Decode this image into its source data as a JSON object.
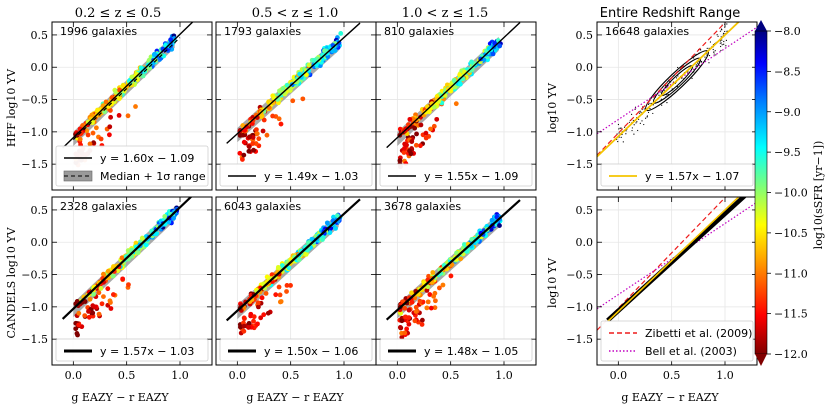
{
  "chart_data": {
    "type": "scatter",
    "xlabel": "g EAZY − r EAZY",
    "xlim": [
      -0.2,
      1.3
    ],
    "ylim": [
      -1.9,
      0.7
    ],
    "xticks": [
      "0.0",
      "0.5",
      "1.0"
    ],
    "yticks": [
      "0.5",
      "0.0",
      "−0.5",
      "−1.0",
      "−1.5"
    ],
    "column_titles": [
      "0.2 ≤ z ≤ 0.5",
      "0.5 < z ≤ 1.0",
      "1.0 < z ≤ 1.5",
      "Entire Redshift Range"
    ],
    "row_ylabels": [
      "HFF log10 ΥV",
      "CANDELS log10 ΥV",
      "log10 ΥV",
      "log10 ΥV"
    ],
    "colorbar": {
      "label": "log10(sSFR [yr−1])",
      "range": [
        -12.0,
        -8.0
      ],
      "ticks": [
        "−8.0",
        "−8.5",
        "−9.0",
        "−9.5",
        "−10.0",
        "−10.5",
        "−11.0",
        "−11.5",
        "−12.0"
      ]
    },
    "panels": [
      {
        "row": 0,
        "col": 0,
        "count_label": "1996 galaxies",
        "slope": 1.6,
        "intercept": -1.09,
        "legend": [
          "y = 1.60x − 1.09",
          "Median + 1σ range"
        ]
      },
      {
        "row": 0,
        "col": 1,
        "count_label": "1793 galaxies",
        "slope": 1.49,
        "intercept": -1.03,
        "legend": [
          "y = 1.49x − 1.03"
        ]
      },
      {
        "row": 0,
        "col": 2,
        "count_label": "810 galaxies",
        "slope": 1.55,
        "intercept": -1.09,
        "legend": [
          "y = 1.55x − 1.09"
        ]
      },
      {
        "row": 0,
        "col": 3,
        "count_label": "16648 galaxies",
        "slope": 1.57,
        "intercept": -1.07,
        "legend": [
          "y = 1.57x − 1.07"
        ]
      },
      {
        "row": 1,
        "col": 0,
        "count_label": "2328 galaxies",
        "slope": 1.57,
        "intercept": -1.03,
        "legend": [
          "y = 1.57x − 1.03"
        ]
      },
      {
        "row": 1,
        "col": 1,
        "count_label": "6043 galaxies",
        "slope": 1.5,
        "intercept": -1.06,
        "legend": [
          "y = 1.50x − 1.06"
        ]
      },
      {
        "row": 1,
        "col": 2,
        "count_label": "3678 galaxies",
        "slope": 1.48,
        "intercept": -1.05,
        "legend": [
          "y = 1.48x − 1.05"
        ]
      },
      {
        "row": 1,
        "col": 3,
        "count_label": "",
        "slope": 1.5,
        "intercept": -1.06,
        "legend": [
          "Zibetti et al. (2009)",
          "Bell et al. (2003)"
        ]
      }
    ],
    "reference_relations": [
      {
        "name": "Zibetti et al. (2009)",
        "slope": 1.71,
        "intercept": -1.02,
        "color": "#ee1c1c",
        "style": "dashed"
      },
      {
        "name": "Bell et al. (2003)",
        "slope": 1.1,
        "intercept": -0.81,
        "color": "#c000c0",
        "style": "dotted"
      }
    ],
    "fit_color_combined": "#f5c400"
  }
}
